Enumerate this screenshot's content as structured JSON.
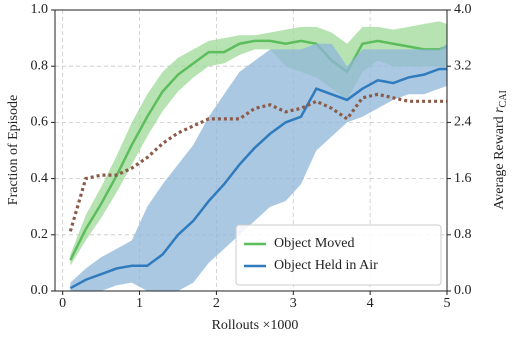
{
  "chart_data": {
    "type": "line",
    "xlabel": "Rollouts ×1000",
    "ylabel": "Fraction of Episode",
    "ylabel2": "Average Reward",
    "ylabel2_symbol": "r",
    "ylabel2_sub": "CAI",
    "x": [
      0.1,
      0.3,
      0.5,
      0.7,
      0.9,
      1.1,
      1.3,
      1.5,
      1.7,
      1.9,
      2.1,
      2.3,
      2.5,
      2.7,
      2.9,
      3.1,
      3.3,
      3.5,
      3.7,
      3.9,
      4.1,
      4.3,
      4.5,
      4.7,
      4.9,
      5.0
    ],
    "series": [
      {
        "name": "Object Moved",
        "color": "#5cbd5c",
        "band_color": "#9fd99a",
        "values": [
          0.11,
          0.22,
          0.31,
          0.41,
          0.52,
          0.62,
          0.71,
          0.77,
          0.81,
          0.85,
          0.85,
          0.88,
          0.89,
          0.89,
          0.88,
          0.89,
          0.88,
          0.82,
          0.78,
          0.88,
          0.89,
          0.88,
          0.87,
          0.86,
          0.86,
          0.87
        ],
        "lower": [
          0.09,
          0.18,
          0.26,
          0.35,
          0.45,
          0.55,
          0.64,
          0.71,
          0.76,
          0.8,
          0.81,
          0.84,
          0.86,
          0.86,
          0.8,
          0.78,
          0.76,
          0.72,
          0.68,
          0.78,
          0.82,
          0.8,
          0.8,
          0.8,
          0.8,
          0.8
        ],
        "upper": [
          0.13,
          0.27,
          0.37,
          0.48,
          0.6,
          0.7,
          0.78,
          0.83,
          0.86,
          0.89,
          0.9,
          0.91,
          0.91,
          0.92,
          0.93,
          0.94,
          0.94,
          0.92,
          0.88,
          0.94,
          0.94,
          0.93,
          0.94,
          0.95,
          0.96,
          0.95
        ]
      },
      {
        "name": "Object Held in Air",
        "color": "#2f7bbd",
        "band_color": "#8fb5d9",
        "values": [
          0.01,
          0.04,
          0.06,
          0.08,
          0.09,
          0.09,
          0.13,
          0.2,
          0.25,
          0.32,
          0.38,
          0.45,
          0.51,
          0.56,
          0.6,
          0.62,
          0.72,
          0.7,
          0.68,
          0.72,
          0.75,
          0.74,
          0.76,
          0.77,
          0.79,
          0.79
        ],
        "lower": [
          0,
          0,
          0,
          0.02,
          0.03,
          0,
          0,
          0,
          0.03,
          0.1,
          0.15,
          0.2,
          0.25,
          0.3,
          0.32,
          0.38,
          0.5,
          0.55,
          0.6,
          0.62,
          0.65,
          0.68,
          0.7,
          0.7,
          0.72,
          0.73
        ],
        "upper": [
          0.03,
          0.08,
          0.12,
          0.15,
          0.18,
          0.3,
          0.38,
          0.45,
          0.52,
          0.62,
          0.7,
          0.78,
          0.82,
          0.86,
          0.86,
          0.86,
          0.88,
          0.88,
          0.8,
          0.86,
          0.86,
          0.86,
          0.86,
          0.86,
          0.86,
          0.88
        ]
      },
      {
        "axis": "y2",
        "color": "#8b5a48",
        "dotted": true,
        "values": [
          0.85,
          1.6,
          1.65,
          1.65,
          1.75,
          1.9,
          2.1,
          2.25,
          2.35,
          2.45,
          2.45,
          2.45,
          2.6,
          2.65,
          2.55,
          2.6,
          2.7,
          2.6,
          2.45,
          2.75,
          2.8,
          2.75,
          2.7,
          2.7,
          2.7,
          2.7
        ]
      }
    ],
    "xlim": [
      -0.1,
      5
    ],
    "xticks": [
      0,
      1,
      2,
      3,
      4,
      5
    ],
    "ylim": [
      0,
      1
    ],
    "yticks": [
      {
        "value": 0,
        "label": "0.0"
      },
      {
        "value": 0.2,
        "label": "0.2"
      },
      {
        "value": 0.4,
        "label": "0.4"
      },
      {
        "value": 0.6,
        "label": "0.6"
      },
      {
        "value": 0.8,
        "label": "0.8"
      },
      {
        "value": 1,
        "label": "1.0"
      }
    ],
    "y2lim": [
      0,
      4
    ],
    "y2ticks": [
      {
        "value": 0,
        "label": "0.0"
      },
      {
        "value": 0.8,
        "label": "0.8"
      },
      {
        "value": 1.6,
        "label": "1.6"
      },
      {
        "value": 2.4,
        "label": "2.4"
      },
      {
        "value": 3.2,
        "label": "3.2"
      },
      {
        "value": 4,
        "label": "4.0"
      }
    ],
    "grid": true,
    "legend": "lower right"
  }
}
